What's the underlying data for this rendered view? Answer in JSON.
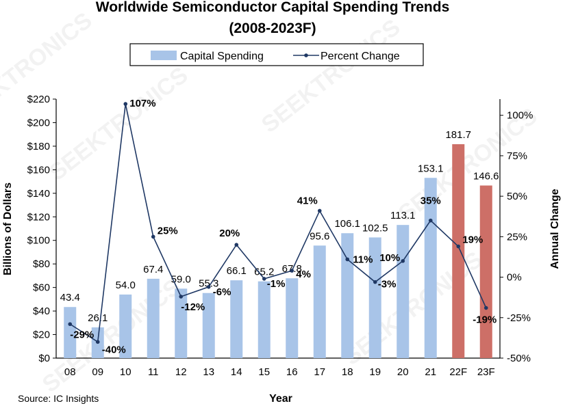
{
  "title_line1": "Worldwide Semiconductor Capital Spending Trends",
  "title_line2": "(2008-2023F)",
  "source": "Source: IC Insights",
  "watermark": "SEEKTRONICS",
  "colors": {
    "bar": "#a8c4e8",
    "bar_forecast": "#cd6f67",
    "line": "#1f3864",
    "text": "#000000"
  },
  "chart_data": {
    "type": "bar",
    "title": "Worldwide Semiconductor Capital Spending Trends (2008-2023F)",
    "xlabel": "Year",
    "ylabel": "Billions of Dollars",
    "y2label": "Annual Change",
    "categories": [
      "08",
      "09",
      "10",
      "11",
      "12",
      "13",
      "14",
      "15",
      "16",
      "17",
      "18",
      "19",
      "20",
      "21",
      "22F",
      "23F"
    ],
    "ylim": [
      0,
      220
    ],
    "yticks": [
      0,
      20,
      40,
      60,
      80,
      100,
      120,
      140,
      160,
      180,
      200,
      220
    ],
    "ytick_labels": [
      "$0",
      "$20",
      "$40",
      "$60",
      "$80",
      "$100",
      "$120",
      "$140",
      "$160",
      "$180",
      "$200",
      "$220"
    ],
    "y2lim": [
      -50,
      110
    ],
    "y2ticks": [
      -50,
      -25,
      0,
      25,
      50,
      75,
      100
    ],
    "y2tick_labels": [
      "-50%",
      "-25%",
      "0%",
      "25%",
      "50%",
      "75%",
      "100%"
    ],
    "legend_placement": "top-center",
    "series": [
      {
        "name": "Capital Spending",
        "kind": "bar",
        "values": [
          43.4,
          26.1,
          54.0,
          67.4,
          59.0,
          55.3,
          66.1,
          65.2,
          67.8,
          95.6,
          106.1,
          102.5,
          113.1,
          153.1,
          181.7,
          146.6
        ],
        "labels": [
          "43.4",
          "26.1",
          "54.0",
          "67.4",
          "59.0",
          "55.3",
          "66.1",
          "65.2",
          "67.8",
          "95.6",
          "106.1",
          "102.5",
          "113.1",
          "153.1",
          "181.7",
          "146.6"
        ],
        "forecast": [
          false,
          false,
          false,
          false,
          false,
          false,
          false,
          false,
          false,
          false,
          false,
          false,
          false,
          false,
          true,
          true
        ]
      },
      {
        "name": "Percent Change",
        "kind": "line",
        "axis": "right",
        "values": [
          -29,
          -40,
          107,
          25,
          -12,
          -6,
          20,
          -1,
          4,
          41,
          11,
          -3,
          10,
          35,
          19,
          -19
        ],
        "labels": [
          "-29%",
          "-40%",
          "107%",
          "25%",
          "-12%",
          "-6%",
          "20%",
          "-1%",
          "4%",
          "41%",
          "11%",
          "-3%",
          "10%",
          "35%",
          "19%",
          "-19%"
        ]
      }
    ]
  }
}
